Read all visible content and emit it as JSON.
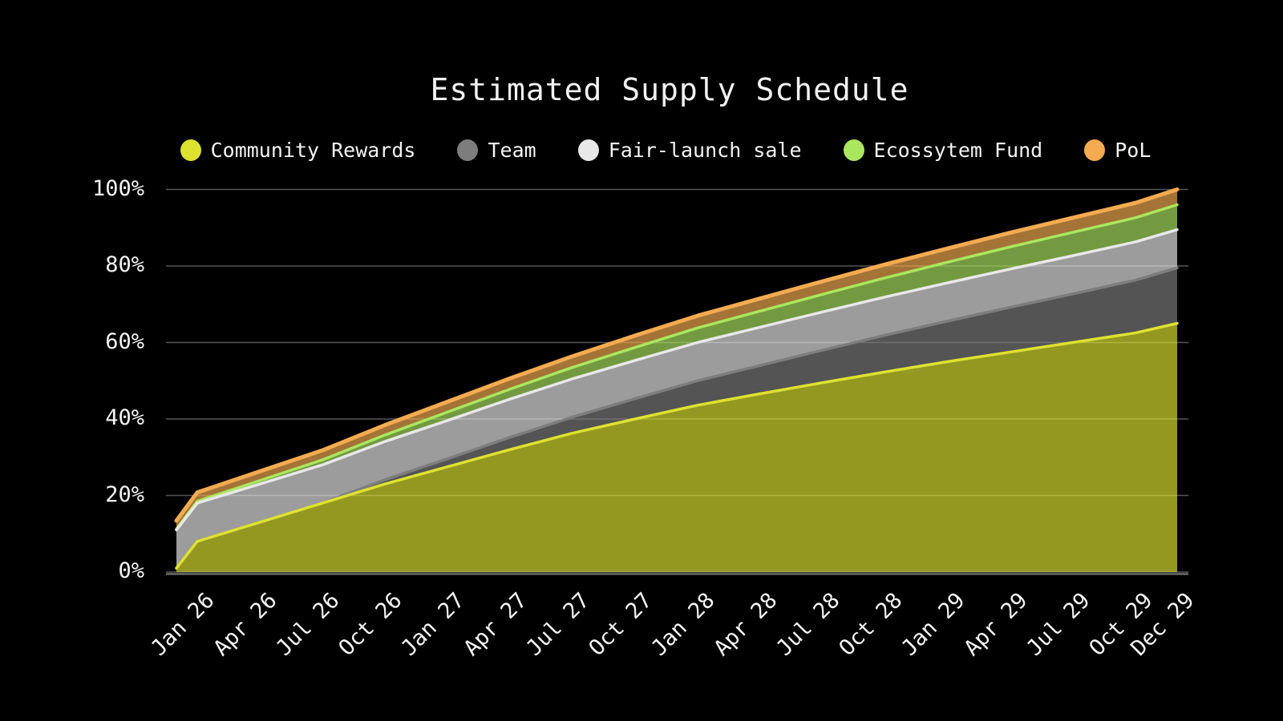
{
  "title": "Estimated Supply Schedule",
  "legend": {
    "position": "top"
  },
  "axes": {
    "y_ticks": [
      {
        "label": "0%",
        "value": 0
      },
      {
        "label": "20%",
        "value": 20
      },
      {
        "label": "40%",
        "value": 40
      },
      {
        "label": "60%",
        "value": 60
      },
      {
        "label": "80%",
        "value": 80
      },
      {
        "label": "100%",
        "value": 100
      }
    ]
  },
  "chart_data": {
    "type": "area",
    "stacked": true,
    "title": "Estimated Supply Schedule",
    "unit": "%",
    "ylim": [
      0,
      100
    ],
    "grid": "horizontal",
    "background_color": "#000000",
    "text_color": "#f5f5f5",
    "gridline_color": "#565656",
    "baseline_color": "#6b6b6b",
    "fill_opacity": 0.67,
    "x_months_since_start": [
      0,
      1,
      4,
      7,
      10,
      13,
      16,
      19,
      22,
      25,
      28,
      31,
      34,
      37,
      40,
      43,
      46,
      48
    ],
    "x_ticks": [
      {
        "label": "Jan 26",
        "month": 1
      },
      {
        "label": "Apr 26",
        "month": 4
      },
      {
        "label": "Jul 26",
        "month": 7
      },
      {
        "label": "Oct 26",
        "month": 10
      },
      {
        "label": "Jan 27",
        "month": 13
      },
      {
        "label": "Apr 27",
        "month": 16
      },
      {
        "label": "Jul 27",
        "month": 19
      },
      {
        "label": "Oct 27",
        "month": 22
      },
      {
        "label": "Jan 28",
        "month": 25
      },
      {
        "label": "Apr 28",
        "month": 28
      },
      {
        "label": "Jul 28",
        "month": 31
      },
      {
        "label": "Oct 28",
        "month": 34
      },
      {
        "label": "Jan 29",
        "month": 37
      },
      {
        "label": "Apr 29",
        "month": 40
      },
      {
        "label": "Jul 29",
        "month": 43
      },
      {
        "label": "Oct 29",
        "month": 46
      },
      {
        "label": "Dec 29",
        "month": 48
      }
    ],
    "series": [
      {
        "name": "Community Rewards",
        "color": "#dde231",
        "values": [
          1.0,
          8.0,
          13.0,
          18.0,
          23.0,
          27.5,
          32.0,
          36.3,
          40.0,
          43.6,
          46.6,
          49.5,
          52.3,
          55.0,
          57.5,
          60.0,
          62.5,
          65.0
        ]
      },
      {
        "name": "Team",
        "color": "#7d7d7d",
        "values": [
          0,
          0,
          0,
          0,
          1.1,
          2.1,
          3.2,
          4.2,
          5.3,
          6.4,
          7.4,
          8.5,
          9.6,
          10.6,
          11.7,
          12.7,
          13.8,
          14.5
        ]
      },
      {
        "name": "Fair-launch sale",
        "color": "#e8e8e8",
        "values": [
          10,
          10,
          10,
          10,
          10,
          10,
          10,
          10,
          10,
          10,
          10,
          10,
          10,
          10,
          10,
          10,
          10,
          10
        ]
      },
      {
        "name": "Ecossytem Fund",
        "color": "#abe65f",
        "values": [
          0.2,
          0.5,
          0.9,
          1.3,
          1.7,
          2.2,
          2.6,
          3.0,
          3.4,
          3.8,
          4.2,
          4.6,
          5.0,
          5.4,
          5.8,
          6.1,
          6.3,
          6.5
        ]
      },
      {
        "name": "PoL",
        "color": "#f4ab51",
        "values": [
          2.2,
          2.3,
          2.4,
          2.5,
          2.6,
          2.7,
          2.8,
          2.9,
          3.1,
          3.2,
          3.3,
          3.4,
          3.5,
          3.6,
          3.7,
          3.8,
          3.9,
          4.0
        ]
      }
    ]
  }
}
